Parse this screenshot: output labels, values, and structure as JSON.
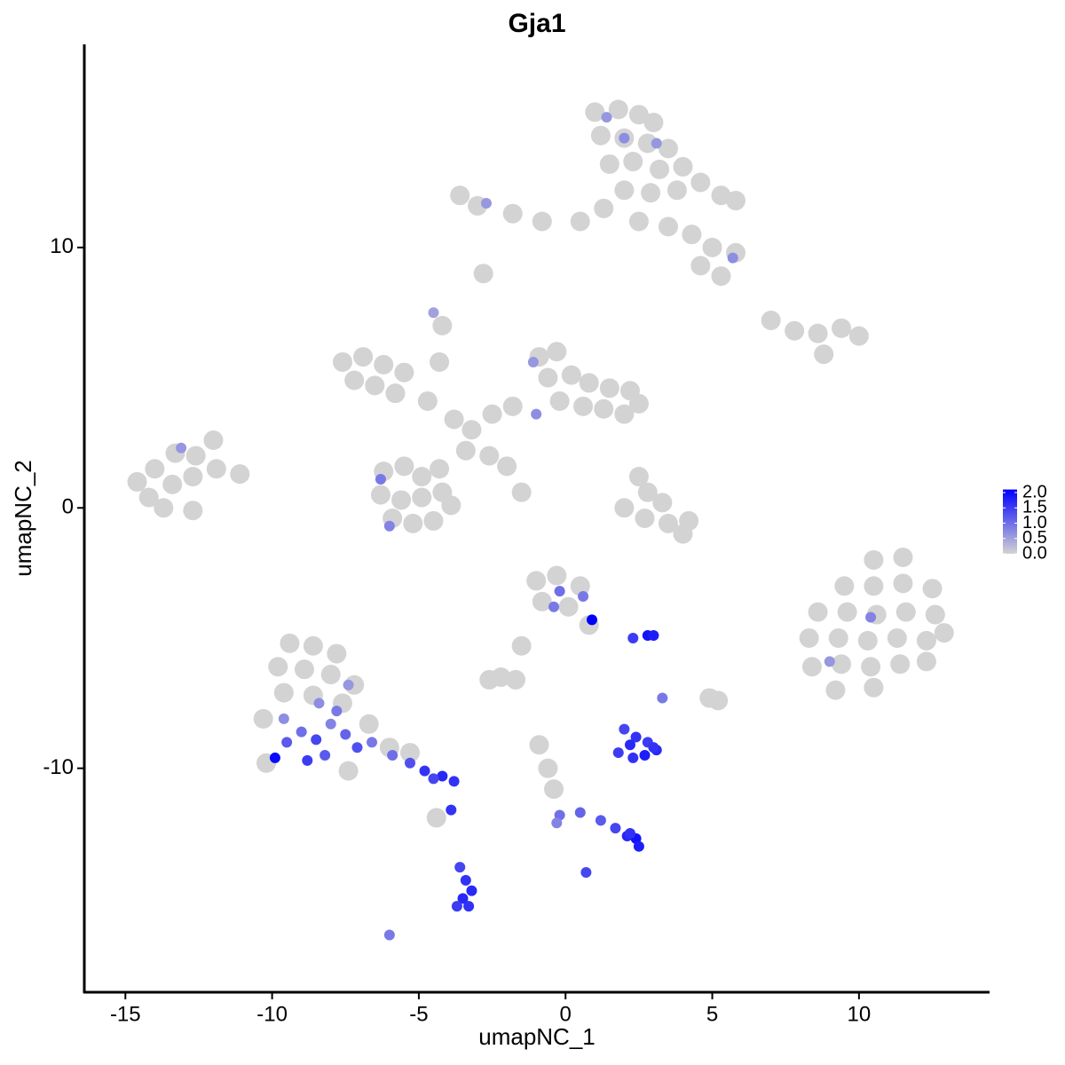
{
  "chart_data": {
    "type": "scatter",
    "title": "Gja1",
    "x_label": "umapNC_1",
    "y_label": "umapNC_2",
    "xlim": [
      -16.4,
      14.45
    ],
    "ylim": [
      -18.6,
      17.8
    ],
    "xticks": [
      -15,
      -10,
      -5,
      0,
      5,
      10
    ],
    "yticks": [
      -10,
      0,
      10
    ],
    "low_color": "#d3d3d3",
    "high_color": "#0000ff",
    "clim": [
      0,
      2.1
    ],
    "cticks": [
      {
        "value": 0,
        "label": "0.0"
      },
      {
        "value": 0.5,
        "label": "0.5"
      },
      {
        "value": 1,
        "label": "1.0"
      },
      {
        "value": 1.5,
        "label": "1.5"
      },
      {
        "value": 2,
        "label": "2.0"
      }
    ],
    "x": [
      1.0,
      1.8,
      2.5,
      3.0,
      1.2,
      2.0,
      2.8,
      3.5,
      1.5,
      2.3,
      3.2,
      4.0,
      4.6,
      5.3,
      2.0,
      2.9,
      3.8,
      5.8,
      -3.0,
      -1.8,
      -0.8,
      0.5,
      1.3,
      2.5,
      3.5,
      4.3,
      5.0,
      5.8,
      4.6,
      5.3,
      -3.6,
      -2.8,
      7.0,
      7.8,
      8.6,
      9.4,
      10.0,
      8.8,
      -7.6,
      -6.9,
      -6.2,
      -5.5,
      -7.2,
      -6.5,
      -5.8,
      -4.7,
      -4.3,
      -4.2,
      -3.8,
      -3.2,
      -2.5,
      -1.8,
      -3.4,
      -2.6,
      -2.0,
      -1.5,
      -0.9,
      -0.3,
      -0.6,
      0.2,
      0.8,
      1.5,
      2.2,
      -0.2,
      0.6,
      1.3,
      2.0,
      2.5,
      -6.2,
      -5.5,
      -4.9,
      -4.3,
      -6.3,
      -5.6,
      -4.9,
      -4.2,
      -5.9,
      -5.2,
      -4.5,
      -3.9,
      -14.6,
      -14.0,
      -13.3,
      -12.6,
      -12.0,
      -14.2,
      -13.4,
      -12.7,
      -11.9,
      -11.1,
      -13.7,
      -12.7,
      2.5,
      2.8,
      3.3,
      2.0,
      2.7,
      3.5,
      4.2,
      4.0,
      10.5,
      11.5,
      9.5,
      10.5,
      11.5,
      12.5,
      8.6,
      9.6,
      10.6,
      11.6,
      12.6,
      8.3,
      9.3,
      10.3,
      11.3,
      12.3,
      12.9,
      8.4,
      9.4,
      10.4,
      11.4,
      12.3,
      9.2,
      10.5,
      -1.0,
      -0.3,
      0.5,
      -0.8,
      0.1,
      0.8,
      -1.5,
      -2.6,
      -9.4,
      -8.6,
      -7.8,
      -9.8,
      -8.9,
      -8.0,
      -7.2,
      -9.6,
      -8.6,
      -7.6,
      -10.3,
      -6.7,
      -6.0,
      -5.3,
      -10.2,
      -7.4,
      -0.9,
      -0.6,
      -0.4,
      -2.2,
      -1.7,
      4.9,
      5.2,
      -4.4,
      1.4,
      2.0,
      3.1,
      -2.7,
      5.7,
      -4.5,
      -1.1,
      -1.0,
      -6.3,
      -6.0,
      -13.1,
      10.4,
      9.0,
      0.6,
      0.9,
      -0.2,
      -0.4,
      -9.9,
      -9.5,
      -9.0,
      -8.5,
      -8.0,
      -7.5,
      -7.1,
      -8.8,
      -8.2,
      -7.8,
      -9.6,
      -6.6,
      -7.4,
      -8.4,
      -5.9,
      -5.3,
      -4.8,
      -4.2,
      -3.8,
      -4.5,
      -3.9,
      -3.6,
      -3.4,
      -3.2,
      -3.5,
      -3.3,
      -3.7,
      -6.0,
      2.0,
      2.4,
      2.8,
      3.1,
      1.8,
      2.3,
      2.7,
      3.0,
      2.2,
      3.3,
      -0.2,
      0.5,
      1.2,
      1.7,
      2.1,
      2.4,
      2.5,
      2.2,
      0.7,
      -0.3,
      2.8,
      3.0,
      2.3
    ],
    "y": [
      15.2,
      15.3,
      15.1,
      14.8,
      14.3,
      14.2,
      14.0,
      13.8,
      13.2,
      13.3,
      13.0,
      13.1,
      12.5,
      12.0,
      12.2,
      12.1,
      12.2,
      11.8,
      11.6,
      11.3,
      11.0,
      11.0,
      11.5,
      11.0,
      10.8,
      10.5,
      10.0,
      9.8,
      9.3,
      8.9,
      12.0,
      9.0,
      7.2,
      6.8,
      6.7,
      6.9,
      6.6,
      5.9,
      5.6,
      5.8,
      5.5,
      5.2,
      4.9,
      4.7,
      4.4,
      4.1,
      5.6,
      7.0,
      3.4,
      3.0,
      3.6,
      3.9,
      2.2,
      2.0,
      1.6,
      0.6,
      5.8,
      6.0,
      5.0,
      5.1,
      4.8,
      4.6,
      4.5,
      4.1,
      3.9,
      3.8,
      3.6,
      4.0,
      1.4,
      1.6,
      1.2,
      1.5,
      0.5,
      0.3,
      0.4,
      0.6,
      -0.4,
      -0.6,
      -0.5,
      0.1,
      1.0,
      1.5,
      2.1,
      2.0,
      2.6,
      0.4,
      0.9,
      1.2,
      1.5,
      1.3,
      0.0,
      -0.1,
      1.2,
      0.6,
      0.2,
      0.0,
      -0.4,
      -0.6,
      -0.5,
      -1.0,
      -2.0,
      -1.9,
      -3.0,
      -3.0,
      -2.9,
      -3.1,
      -4.0,
      -4.0,
      -4.1,
      -4.0,
      -4.1,
      -5.0,
      -5.0,
      -5.1,
      -5.0,
      -5.1,
      -4.8,
      -6.1,
      -6.0,
      -6.1,
      -6.0,
      -5.9,
      -7.0,
      -6.9,
      -2.8,
      -2.6,
      -3.0,
      -3.6,
      -3.8,
      -4.5,
      -5.3,
      -6.6,
      -5.2,
      -5.3,
      -5.6,
      -6.1,
      -6.2,
      -6.4,
      -6.8,
      -7.1,
      -7.2,
      -7.5,
      -8.1,
      -8.3,
      -9.2,
      -9.4,
      -9.8,
      -10.1,
      -9.1,
      -10.0,
      -10.8,
      -6.5,
      -6.6,
      -7.3,
      -7.4,
      -11.9,
      15.0,
      14.2,
      14.0,
      11.7,
      9.6,
      7.5,
      5.6,
      3.6,
      1.1,
      -0.7,
      2.3,
      -4.2,
      -5.9,
      -3.4,
      -4.3,
      -3.2,
      -3.8,
      -9.6,
      -9.0,
      -8.6,
      -8.9,
      -8.3,
      -8.7,
      -9.2,
      -9.7,
      -9.5,
      -7.8,
      -8.1,
      -9.0,
      -6.8,
      -7.5,
      -9.5,
      -9.8,
      -10.1,
      -10.3,
      -10.5,
      -10.4,
      -11.6,
      -13.8,
      -14.3,
      -14.7,
      -15.0,
      -15.3,
      -15.3,
      -16.4,
      -8.5,
      -8.8,
      -9.0,
      -9.3,
      -9.4,
      -9.6,
      -9.5,
      -9.2,
      -9.1,
      -7.3,
      -11.8,
      -11.7,
      -12.0,
      -12.3,
      -12.6,
      -12.7,
      -13.0,
      -12.5,
      -14.0,
      -12.1,
      -4.9,
      -4.9,
      -5.0
    ],
    "expression": [
      0,
      0,
      0,
      0,
      0,
      0,
      0,
      0,
      0,
      0,
      0,
      0,
      0,
      0,
      0,
      0,
      0,
      0,
      0,
      0,
      0,
      0,
      0,
      0,
      0,
      0,
      0,
      0,
      0,
      0,
      0,
      0,
      0,
      0,
      0,
      0,
      0,
      0,
      0,
      0,
      0,
      0,
      0,
      0,
      0,
      0,
      0,
      0,
      0,
      0,
      0,
      0,
      0,
      0,
      0,
      0,
      0,
      0,
      0,
      0,
      0,
      0,
      0,
      0,
      0,
      0,
      0,
      0,
      0,
      0,
      0,
      0,
      0,
      0,
      0,
      0,
      0,
      0,
      0,
      0,
      0,
      0,
      0,
      0,
      0,
      0,
      0,
      0,
      0,
      0,
      0,
      0,
      0,
      0,
      0,
      0,
      0,
      0,
      0,
      0,
      0,
      0,
      0,
      0,
      0,
      0,
      0,
      0,
      0,
      0,
      0,
      0,
      0,
      0,
      0,
      0,
      0,
      0,
      0,
      0,
      0,
      0,
      0,
      0,
      0,
      0,
      0,
      0,
      0,
      0,
      0,
      0,
      0,
      0,
      0,
      0,
      0,
      0,
      0,
      0,
      0,
      0,
      0,
      0,
      0,
      0,
      0,
      0,
      0,
      0,
      0,
      0,
      0,
      0,
      0,
      0,
      0.6,
      0.7,
      0.6,
      0.6,
      0.7,
      0.5,
      0.6,
      0.7,
      0.9,
      0.8,
      0.6,
      0.8,
      0.6,
      0.9,
      2.1,
      1.0,
      0.9,
      2.0,
      1.2,
      1.0,
      1.4,
      0.8,
      1.1,
      1.3,
      1.5,
      1.2,
      0.9,
      0.7,
      0.9,
      0.6,
      0.7,
      1.0,
      1.3,
      1.6,
      1.7,
      1.6,
      1.4,
      1.6,
      1.4,
      1.6,
      1.7,
      1.7,
      1.6,
      1.5,
      0.9,
      1.4,
      1.6,
      1.5,
      1.7,
      1.5,
      1.6,
      1.8,
      1.6,
      1.7,
      0.9,
      1.0,
      1.1,
      1.2,
      1.4,
      1.7,
      1.9,
      1.8,
      1.6,
      1.4,
      0.8,
      1.9,
      1.8,
      1.5
    ]
  }
}
